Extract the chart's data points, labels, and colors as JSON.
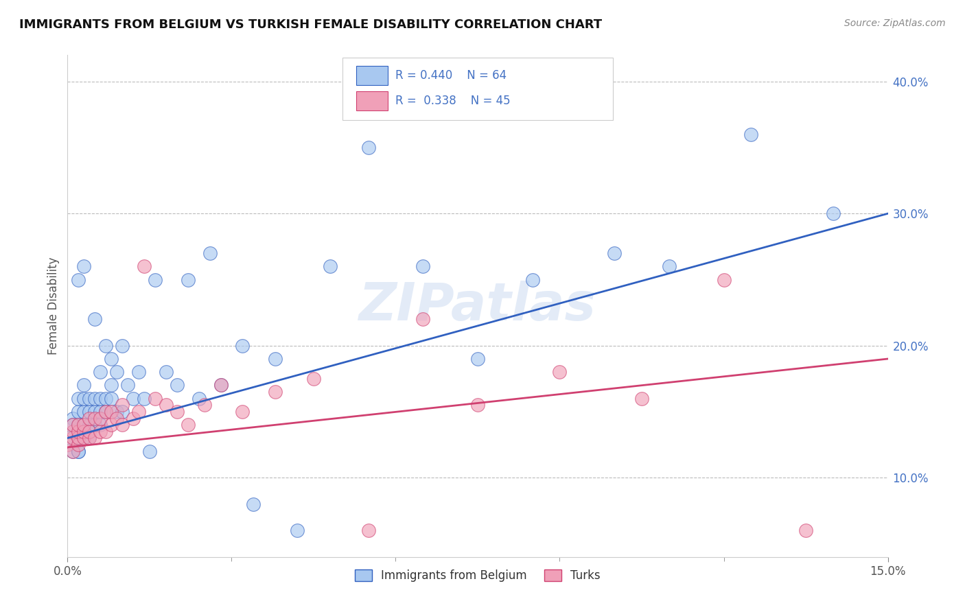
{
  "title": "IMMIGRANTS FROM BELGIUM VS TURKISH FEMALE DISABILITY CORRELATION CHART",
  "source": "Source: ZipAtlas.com",
  "ylabel": "Female Disability",
  "xlim": [
    0.0,
    0.15
  ],
  "ylim": [
    0.04,
    0.42
  ],
  "y_ticks": [
    0.1,
    0.2,
    0.3,
    0.4
  ],
  "y_tick_labels": [
    "10.0%",
    "20.0%",
    "30.0%",
    "40.0%"
  ],
  "color_blue": "#A8C8F0",
  "color_pink": "#F0A0B8",
  "line_color_blue": "#3060C0",
  "line_color_pink": "#D04070",
  "watermark": "ZIPatlas",
  "belgium_x": [
    0.0,
    0.001,
    0.001,
    0.001,
    0.002,
    0.002,
    0.002,
    0.002,
    0.002,
    0.002,
    0.003,
    0.003,
    0.003,
    0.003,
    0.003,
    0.003,
    0.004,
    0.004,
    0.004,
    0.004,
    0.005,
    0.005,
    0.005,
    0.005,
    0.006,
    0.006,
    0.006,
    0.006,
    0.007,
    0.007,
    0.007,
    0.008,
    0.008,
    0.008,
    0.009,
    0.009,
    0.01,
    0.01,
    0.011,
    0.012,
    0.013,
    0.014,
    0.015,
    0.016,
    0.018,
    0.02,
    0.022,
    0.024,
    0.026,
    0.028,
    0.032,
    0.034,
    0.038,
    0.042,
    0.048,
    0.055,
    0.065,
    0.075,
    0.085,
    0.1,
    0.11,
    0.125,
    0.14,
    0.002
  ],
  "belgium_y": [
    0.13,
    0.145,
    0.12,
    0.14,
    0.12,
    0.13,
    0.14,
    0.15,
    0.16,
    0.12,
    0.13,
    0.14,
    0.15,
    0.16,
    0.17,
    0.26,
    0.13,
    0.14,
    0.15,
    0.16,
    0.14,
    0.15,
    0.16,
    0.22,
    0.14,
    0.15,
    0.16,
    0.18,
    0.15,
    0.16,
    0.2,
    0.16,
    0.17,
    0.19,
    0.15,
    0.18,
    0.15,
    0.2,
    0.17,
    0.16,
    0.18,
    0.16,
    0.12,
    0.25,
    0.18,
    0.17,
    0.25,
    0.16,
    0.27,
    0.17,
    0.2,
    0.08,
    0.19,
    0.06,
    0.26,
    0.35,
    0.26,
    0.19,
    0.25,
    0.27,
    0.26,
    0.36,
    0.3,
    0.25
  ],
  "turks_x": [
    0.0,
    0.001,
    0.001,
    0.001,
    0.001,
    0.002,
    0.002,
    0.002,
    0.002,
    0.003,
    0.003,
    0.003,
    0.004,
    0.004,
    0.004,
    0.005,
    0.005,
    0.006,
    0.006,
    0.007,
    0.007,
    0.008,
    0.008,
    0.009,
    0.01,
    0.01,
    0.012,
    0.013,
    0.014,
    0.016,
    0.018,
    0.02,
    0.022,
    0.025,
    0.028,
    0.032,
    0.038,
    0.045,
    0.055,
    0.065,
    0.075,
    0.09,
    0.105,
    0.12,
    0.135
  ],
  "turks_y": [
    0.125,
    0.12,
    0.13,
    0.135,
    0.14,
    0.125,
    0.13,
    0.135,
    0.14,
    0.13,
    0.135,
    0.14,
    0.13,
    0.135,
    0.145,
    0.13,
    0.145,
    0.135,
    0.145,
    0.135,
    0.15,
    0.14,
    0.15,
    0.145,
    0.14,
    0.155,
    0.145,
    0.15,
    0.26,
    0.16,
    0.155,
    0.15,
    0.14,
    0.155,
    0.17,
    0.15,
    0.165,
    0.175,
    0.06,
    0.22,
    0.155,
    0.18,
    0.16,
    0.25,
    0.06
  ],
  "bel_line_x0": 0.0,
  "bel_line_y0": 0.13,
  "bel_line_x1": 0.15,
  "bel_line_y1": 0.3,
  "turk_line_x0": 0.0,
  "turk_line_y0": 0.123,
  "turk_line_x1": 0.15,
  "turk_line_y1": 0.19
}
